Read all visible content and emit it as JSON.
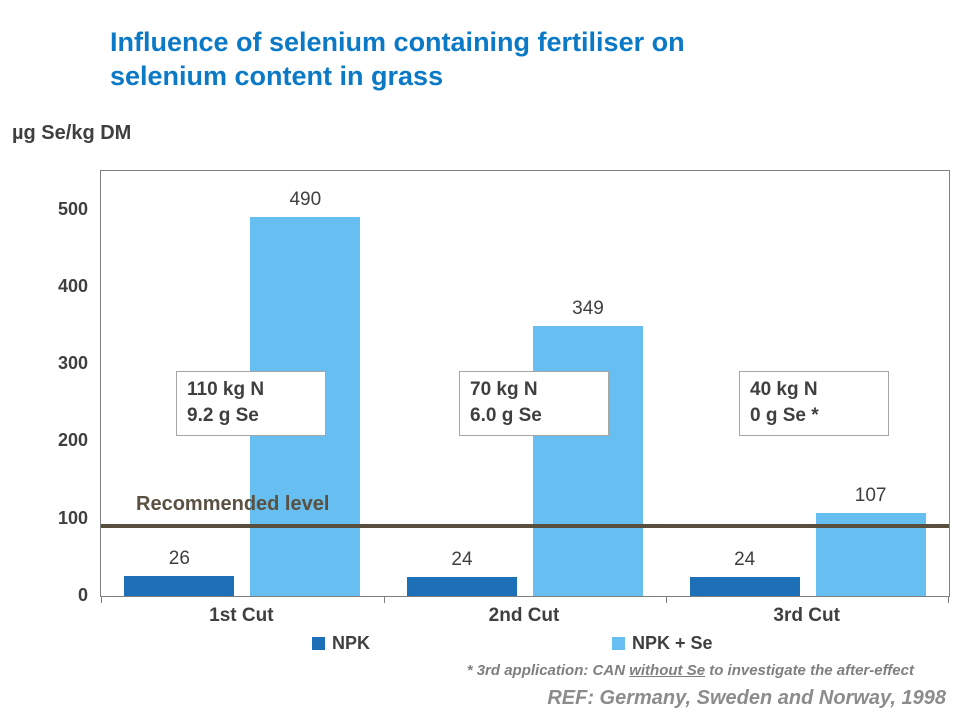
{
  "title": {
    "lines": [
      "Influence of selenium containing fertiliser on",
      "selenium content in grass"
    ],
    "color": "#0b79c5"
  },
  "y_axis_label": "µg Se/kg DM",
  "chart_data": {
    "type": "bar",
    "categories": [
      "1st Cut",
      "2nd Cut",
      "3rd Cut"
    ],
    "series": [
      {
        "name": "NPK",
        "color": "#1d70b8",
        "values": [
          26,
          24,
          24
        ]
      },
      {
        "name": "NPK + Se",
        "color": "#66bff0",
        "values": [
          490,
          349,
          107
        ]
      }
    ],
    "ylim": [
      0,
      550
    ],
    "yticks": [
      0,
      100,
      200,
      300,
      400,
      500
    ],
    "grid": false,
    "legend_position": "bottom",
    "value_labels": true,
    "reference_line": {
      "value": 90,
      "label": "Recommended level",
      "color": "#594f3f"
    },
    "annotations": [
      {
        "line1": "110 kg N",
        "line2": "9.2 g Se"
      },
      {
        "line1": "70 kg N",
        "line2": "6.0 g Se"
      },
      {
        "line1": "40 kg N",
        "line2": "0 g Se *"
      }
    ]
  },
  "footnote": {
    "prefix": "* 3rd application:  CAN ",
    "underlined": "without Se",
    "suffix": " to investigate the after-effect"
  },
  "reference": "REF: Germany, Sweden and Norway, 1998"
}
